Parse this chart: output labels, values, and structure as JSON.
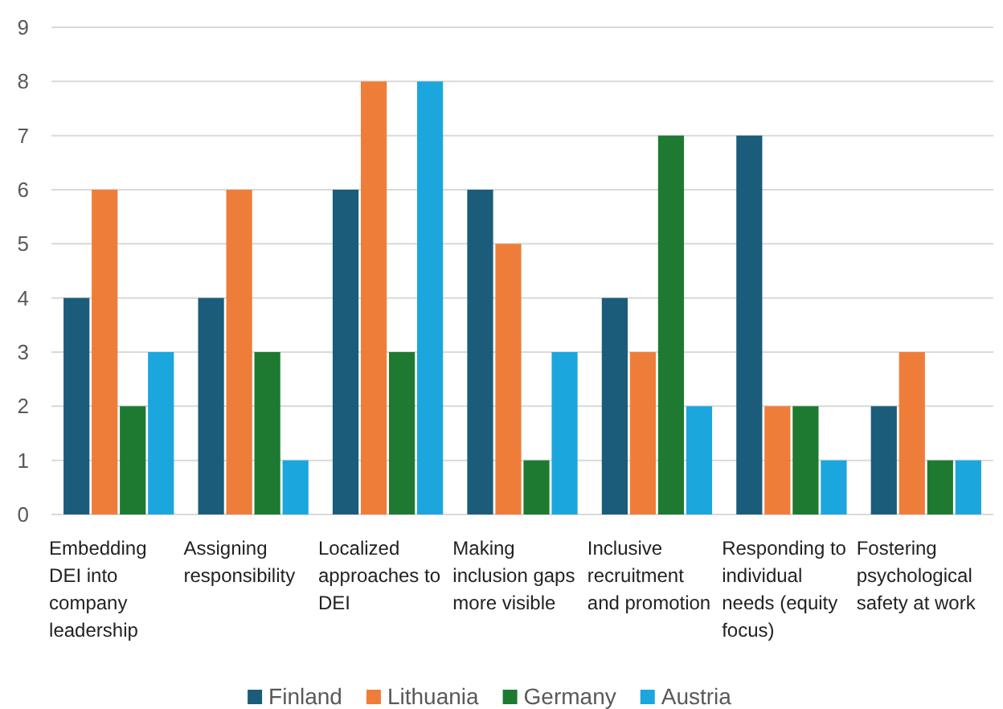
{
  "chart_data": {
    "type": "bar",
    "categories": [
      "Embedding DEI into company leadership",
      "Assigning responsibility",
      "Localized approaches to DEI",
      "Making inclusion gaps more visible",
      "Inclusive recruitment and promotion",
      "Responding to individual needs (equity focus)",
      "Fostering psychological safety at work"
    ],
    "series": [
      {
        "name": "Finland",
        "color": "#1b5c7a",
        "values": [
          4,
          4,
          6,
          6,
          4,
          7,
          2
        ]
      },
      {
        "name": "Lithuania",
        "color": "#ef7d3a",
        "values": [
          6,
          6,
          8,
          5,
          3,
          2,
          3
        ]
      },
      {
        "name": "Germany",
        "color": "#1d7a30",
        "values": [
          2,
          3,
          3,
          1,
          7,
          2,
          1
        ]
      },
      {
        "name": "Austria",
        "color": "#1ba6de",
        "values": [
          3,
          1,
          8,
          3,
          2,
          1,
          1
        ]
      }
    ],
    "ylim": [
      0,
      9
    ],
    "yticks": [
      0,
      1,
      2,
      3,
      4,
      5,
      6,
      7,
      8,
      9
    ],
    "grid": "y",
    "legend": "bottom"
  }
}
